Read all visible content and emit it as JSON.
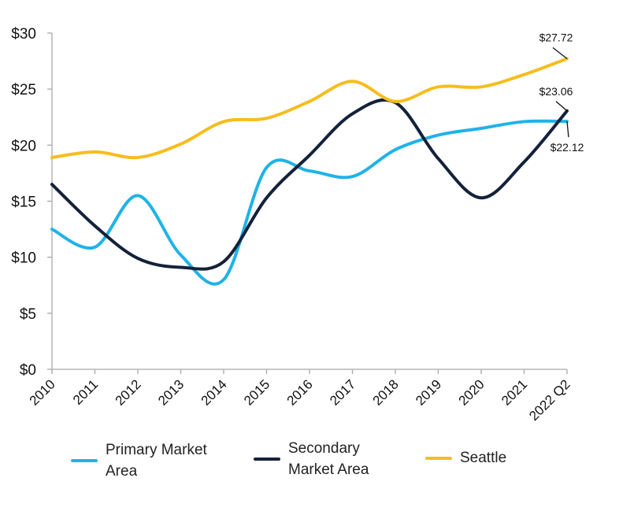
{
  "chart_data": {
    "type": "line",
    "title": "",
    "xlabel": "",
    "ylabel": "",
    "ylim": [
      0,
      30
    ],
    "y_ticks": [
      "$0",
      "$5",
      "$10",
      "$15",
      "$20",
      "$25",
      "$30"
    ],
    "categories": [
      "2010",
      "2011",
      "2012",
      "2013",
      "2014",
      "2015",
      "2016",
      "2017",
      "2018",
      "2019",
      "2020",
      "2021",
      "2022 Q2"
    ],
    "series": [
      {
        "name": "Primary Market Area",
        "legend_label": "Primary Market\nArea",
        "color": "#1fb3e8",
        "values": [
          12.5,
          10.9,
          15.5,
          10.2,
          8.0,
          18.0,
          17.7,
          17.2,
          19.6,
          20.9,
          21.5,
          22.1,
          22.12
        ]
      },
      {
        "name": "Secondary Market Area",
        "legend_label": "Secondary\nMarket Area",
        "color": "#13223a",
        "values": [
          16.5,
          12.8,
          9.9,
          9.1,
          9.6,
          15.3,
          19.1,
          22.8,
          23.8,
          18.8,
          15.3,
          18.5,
          23.06
        ]
      },
      {
        "name": "Seattle",
        "legend_label": "Seattle",
        "color": "#f7bd1e",
        "values": [
          18.9,
          19.4,
          18.9,
          20.1,
          22.1,
          22.4,
          23.9,
          25.7,
          23.9,
          25.2,
          25.2,
          26.3,
          27.72
        ]
      }
    ],
    "annotations": [
      {
        "text": "$27.72",
        "series": "Seattle",
        "index": 12
      },
      {
        "text": "$23.06",
        "series": "Secondary Market Area",
        "index": 12
      },
      {
        "text": "$22.12",
        "series": "Primary Market Area",
        "index": 12
      }
    ],
    "grid": false,
    "legend_position": "bottom"
  }
}
